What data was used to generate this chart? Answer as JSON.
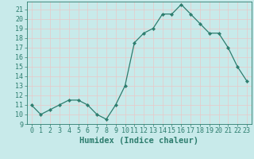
{
  "xlabel": "Humidex (Indice chaleur)",
  "x": [
    0,
    1,
    2,
    3,
    4,
    5,
    6,
    7,
    8,
    9,
    10,
    11,
    12,
    13,
    14,
    15,
    16,
    17,
    18,
    19,
    20,
    21,
    22,
    23
  ],
  "y": [
    11,
    10,
    10.5,
    11,
    11.5,
    11.5,
    11,
    10,
    9.5,
    11,
    13,
    17.5,
    18.5,
    19,
    20.5,
    20.5,
    21.5,
    20.5,
    19.5,
    18.5,
    18.5,
    17,
    15,
    13.5
  ],
  "line_color": "#2d7d6e",
  "marker": "D",
  "marker_size": 2.2,
  "background_color": "#c8eaea",
  "grid_color": "#e8c8c8",
  "label_color": "#2d7d6e",
  "spine_color": "#2d7d6e",
  "ylim": [
    9,
    21.8
  ],
  "yticks": [
    9,
    10,
    11,
    12,
    13,
    14,
    15,
    16,
    17,
    18,
    19,
    20,
    21
  ],
  "xlim": [
    -0.5,
    23.5
  ],
  "xticks": [
    0,
    1,
    2,
    3,
    4,
    5,
    6,
    7,
    8,
    9,
    10,
    11,
    12,
    13,
    14,
    15,
    16,
    17,
    18,
    19,
    20,
    21,
    22,
    23
  ],
  "xlabel_fontsize": 7.5,
  "tick_fontsize": 6.0
}
